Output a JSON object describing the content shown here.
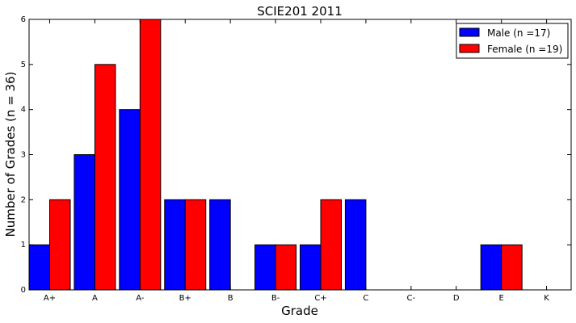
{
  "chart_data": {
    "type": "bar",
    "title": "SCIE201 2011",
    "xlabel": "Grade",
    "ylabel": "Number of Grades (n = 36)",
    "categories": [
      "A+",
      "A",
      "A-",
      "B+",
      "B",
      "B-",
      "C+",
      "C",
      "C-",
      "D",
      "E",
      "K"
    ],
    "series": [
      {
        "name": "Male (n =17)",
        "color": "#0000ff",
        "values": [
          1,
          3,
          4,
          2,
          2,
          1,
          1,
          2,
          0,
          0,
          1,
          0
        ]
      },
      {
        "name": "Female (n =19)",
        "color": "#ff0000",
        "values": [
          2,
          5,
          6,
          2,
          0,
          1,
          2,
          0,
          0,
          0,
          1,
          0
        ]
      }
    ],
    "ylim": [
      0,
      6
    ],
    "yticks": [
      "0",
      "1",
      "2",
      "3",
      "4",
      "5",
      "6"
    ],
    "grid": false,
    "legend_position": "top-right"
  }
}
